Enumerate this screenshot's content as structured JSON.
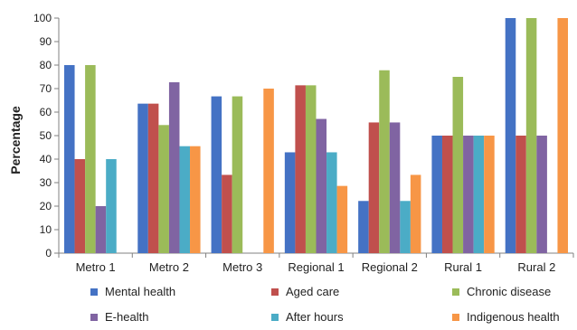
{
  "chart_data": {
    "type": "bar",
    "title": "",
    "xlabel": "",
    "ylabel": "Percentage",
    "ylim": [
      0,
      100
    ],
    "yticks": [
      0,
      10,
      20,
      30,
      40,
      50,
      60,
      70,
      80,
      90,
      100
    ],
    "grid": false,
    "legend_position": "bottom",
    "categories": [
      "Metro 1",
      "Metro 2",
      "Metro 3",
      "Regional 1",
      "Regional 2",
      "Rural 1",
      "Rural 2"
    ],
    "series": [
      {
        "name": "Mental health",
        "color": "#4472C4",
        "values": [
          80,
          63.6,
          66.7,
          42.9,
          22.2,
          50,
          100
        ]
      },
      {
        "name": "Aged care",
        "color": "#C0504D",
        "values": [
          40,
          63.6,
          33.3,
          71.4,
          55.6,
          50,
          50
        ]
      },
      {
        "name": "Chronic disease",
        "color": "#9BBB59",
        "values": [
          80,
          54.5,
          66.7,
          71.4,
          77.8,
          75,
          100
        ]
      },
      {
        "name": "E-health",
        "color": "#8064A2",
        "values": [
          20,
          72.7,
          0,
          57.1,
          55.6,
          50,
          50
        ]
      },
      {
        "name": "After hours",
        "color": "#4BACC6",
        "values": [
          40,
          45.5,
          0,
          42.9,
          22.2,
          50,
          0
        ]
      },
      {
        "name": "Indigenous health",
        "color": "#F79646",
        "values": [
          0,
          45.5,
          70,
          28.6,
          33.3,
          50,
          100
        ]
      }
    ]
  }
}
